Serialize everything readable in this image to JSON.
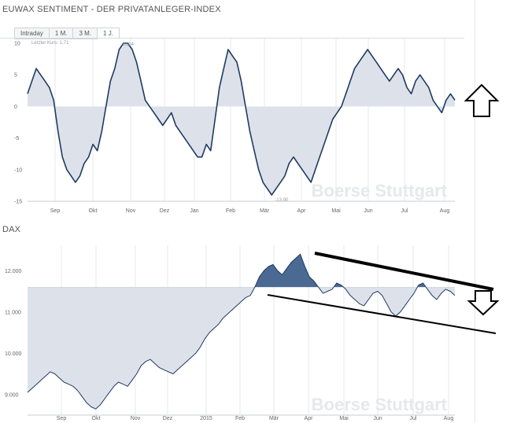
{
  "header_top": {
    "title": "EUWAX SENTIMENT - DER PRIVATANLEGER-INDEX"
  },
  "tabs": [
    {
      "label": "Intraday"
    },
    {
      "label": "1 M."
    },
    {
      "label": "3 M."
    },
    {
      "label": "1 J.",
      "active": true
    }
  ],
  "header_bottom": {
    "title": "DAX"
  },
  "watermark": "Boerse Stuttgart",
  "colors": {
    "line": "#1f3a63",
    "area": "#dde2ea",
    "area_dark": "#4a6a94",
    "grid": "#e6e8eb",
    "trend": "#000000"
  },
  "icons": {
    "top_arrow": "arrow-up-icon",
    "bottom_arrow": "arrow-down-icon"
  },
  "chart_data": [
    {
      "type": "area",
      "title": "EUWAX SENTIMENT - DER PRIVATANLEGER-INDEX",
      "note": "Letzter Kurs: 1,71",
      "max_label": "10,04",
      "min_label": "-13,90",
      "x_ticks": [
        "Sep",
        "Okt",
        "Nov",
        "Dez",
        "Jan",
        "Feb",
        "Mär",
        "Apr",
        "Mai",
        "Jun",
        "Jul",
        "Aug"
      ],
      "y_ticks": [
        "10",
        "5",
        "0",
        "-5",
        "-10",
        "-15"
      ],
      "ylim": [
        -15,
        10
      ],
      "baseline": 0,
      "grid": true,
      "values": [
        2,
        4,
        6,
        5,
        4,
        3,
        1,
        -4,
        -8,
        -10,
        -11,
        -12,
        -11,
        -9,
        -8,
        -6,
        -7,
        -4,
        0,
        4,
        6,
        9,
        10,
        10,
        9,
        7,
        4,
        1,
        0,
        -1,
        -2,
        -3,
        -2,
        -1,
        -3,
        -4,
        -5,
        -6,
        -7,
        -8,
        -8,
        -6,
        -7,
        -2,
        3,
        6,
        9,
        8,
        7,
        4,
        0,
        -4,
        -7,
        -10,
        -12,
        -13,
        -14,
        -13,
        -12,
        -11,
        -9,
        -8,
        -9,
        -10,
        -11,
        -12,
        -10,
        -8,
        -6,
        -4,
        -2,
        -1,
        0,
        2,
        4,
        6,
        7,
        8,
        9,
        8,
        7,
        6,
        5,
        4,
        5,
        6,
        5,
        3,
        2,
        4,
        5,
        4,
        3,
        1,
        0,
        -1,
        1,
        2,
        1
      ]
    },
    {
      "type": "area",
      "title": "DAX",
      "x_ticks": [
        "Sep",
        "Okt",
        "Nov",
        "Dez",
        "2015",
        "Feb",
        "Mär",
        "Apr",
        "Mai",
        "Jun",
        "Jul",
        "Aug"
      ],
      "y_ticks": [
        "12.000",
        "11.000",
        "10.000",
        "9.000"
      ],
      "ylim": [
        8500,
        12500
      ],
      "baseline": 11600,
      "grid": true,
      "values": [
        9050,
        9150,
        9250,
        9350,
        9450,
        9550,
        9500,
        9400,
        9300,
        9250,
        9200,
        9100,
        8950,
        8800,
        8700,
        8650,
        8750,
        8900,
        9050,
        9200,
        9300,
        9250,
        9200,
        9350,
        9500,
        9700,
        9800,
        9850,
        9750,
        9650,
        9600,
        9550,
        9500,
        9600,
        9700,
        9800,
        9900,
        10000,
        10150,
        10350,
        10500,
        10600,
        10700,
        10850,
        10950,
        11050,
        11150,
        11250,
        11350,
        11400,
        11600,
        11850,
        12000,
        12100,
        12150,
        12000,
        11900,
        12050,
        12200,
        12300,
        12400,
        12100,
        11850,
        11750,
        11600,
        11450,
        11500,
        11550,
        11700,
        11650,
        11550,
        11400,
        11300,
        11200,
        11150,
        11300,
        11450,
        11500,
        11400,
        11200,
        11000,
        10900,
        11000,
        11150,
        11300,
        11450,
        11650,
        11700,
        11550,
        11400,
        11300,
        11450,
        11550,
        11500,
        11400
      ]
    }
  ]
}
